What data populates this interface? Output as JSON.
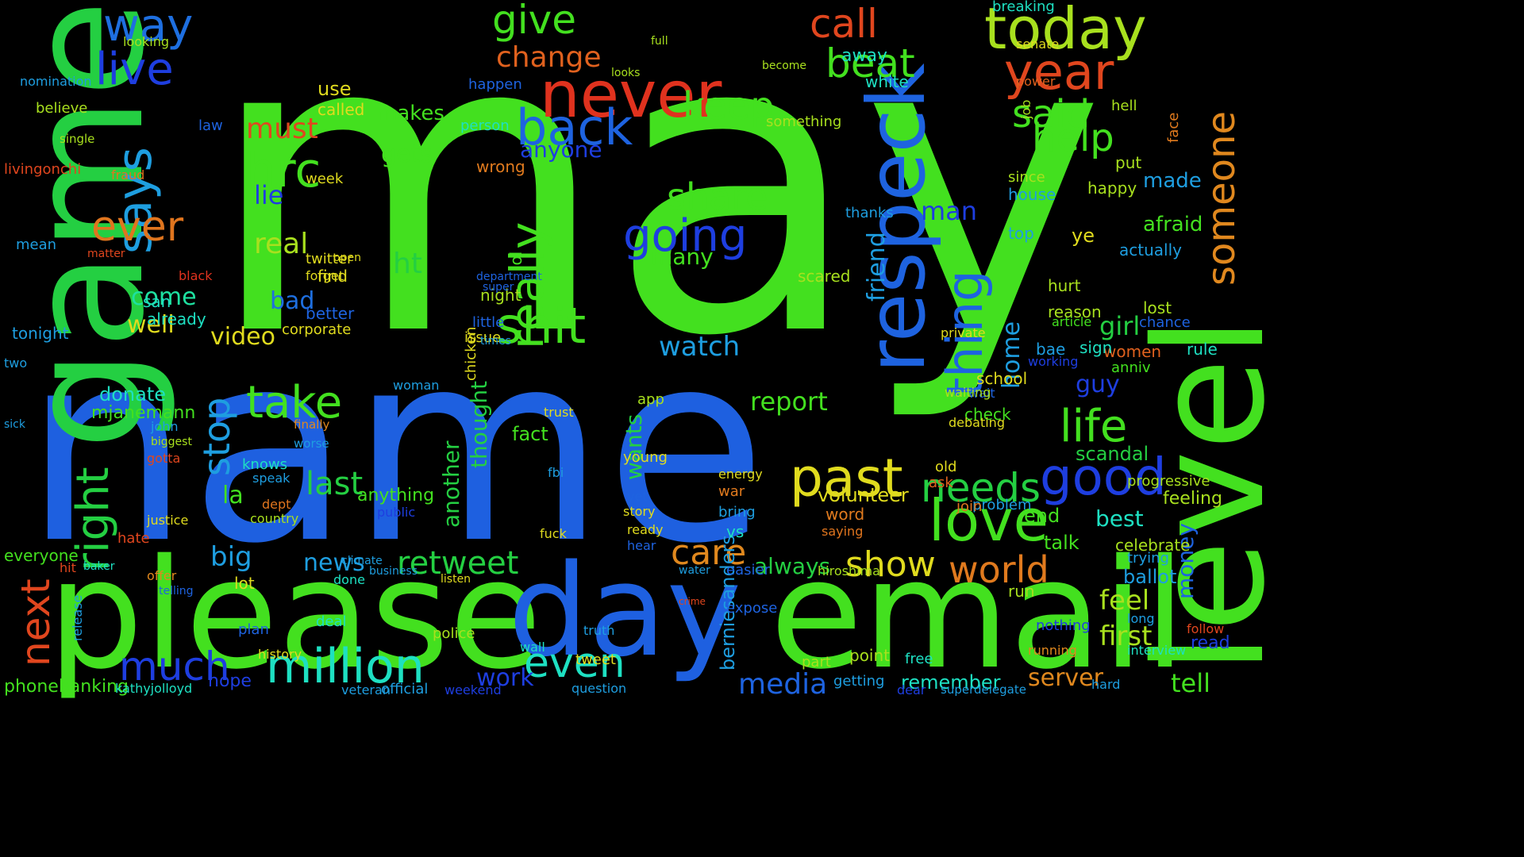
{
  "background_color": "#000000",
  "words": [
    {
      "text": "may",
      "color": "#43e01f"
    },
    {
      "text": "name",
      "color": "#1e60e0"
    },
    {
      "text": "game",
      "color": "#24cf42"
    },
    {
      "text": "level",
      "color": "#43e01f"
    },
    {
      "text": "please",
      "color": "#43e01f"
    },
    {
      "text": "email",
      "color": "#43e01f"
    },
    {
      "text": "day",
      "color": "#1e60e0"
    },
    {
      "text": "respeck",
      "color": "#1e63e0"
    },
    {
      "text": "never",
      "color": "#e0321e"
    },
    {
      "text": "today",
      "color": "#a8e01e"
    },
    {
      "text": "year",
      "color": "#e0461e"
    },
    {
      "text": "back",
      "color": "#1e63e0"
    },
    {
      "text": "says",
      "color": "#1e9ee0"
    },
    {
      "text": "way",
      "color": "#1e6fe0"
    },
    {
      "text": "live",
      "color": "#1e3ee0"
    },
    {
      "text": "give",
      "color": "#43e01f"
    },
    {
      "text": "beat",
      "color": "#43e01f"
    },
    {
      "text": "call",
      "color": "#e0461e"
    },
    {
      "text": "someone",
      "color": "#e0881e"
    },
    {
      "text": "said",
      "color": "#43e01f"
    },
    {
      "text": "help",
      "color": "#43e01f"
    },
    {
      "text": "keep",
      "color": "#43e01f"
    },
    {
      "text": "change",
      "color": "#e0611e"
    },
    {
      "text": "going",
      "color": "#1e3ee0"
    },
    {
      "text": "share",
      "color": "#43e01f"
    },
    {
      "text": "hrc",
      "color": "#43e01f"
    },
    {
      "text": "must",
      "color": "#e0461e"
    },
    {
      "text": "ever",
      "color": "#e0751e"
    },
    {
      "text": "really",
      "color": "#43e01f"
    },
    {
      "text": "shit",
      "color": "#43e01f"
    },
    {
      "text": "thing",
      "color": "#1e63e0"
    },
    {
      "text": "love",
      "color": "#43e01f"
    },
    {
      "text": "past",
      "color": "#e0db1e"
    },
    {
      "text": "good",
      "color": "#1e3ee0"
    },
    {
      "text": "needs",
      "color": "#24cf42"
    },
    {
      "text": "life",
      "color": "#43e01f"
    },
    {
      "text": "right",
      "color": "#24cf42"
    },
    {
      "text": "take",
      "color": "#43e01f"
    },
    {
      "text": "stop",
      "color": "#1e9ee0"
    },
    {
      "text": "million",
      "color": "#1ee0c2"
    },
    {
      "text": "much",
      "color": "#1e3ee0"
    },
    {
      "text": "even",
      "color": "#1ee0c2"
    },
    {
      "text": "world",
      "color": "#e07a1e"
    },
    {
      "text": "care",
      "color": "#e0881e"
    },
    {
      "text": "show",
      "color": "#e0db1e"
    },
    {
      "text": "next",
      "color": "#e0461e"
    },
    {
      "text": "retweet",
      "color": "#24cf42"
    },
    {
      "text": "last",
      "color": "#24cf42"
    },
    {
      "text": "media",
      "color": "#1e63e0"
    },
    {
      "text": "watch",
      "color": "#1e9ee0"
    },
    {
      "text": "report",
      "color": "#43e01f"
    },
    {
      "text": "girl",
      "color": "#24cf42"
    },
    {
      "text": "first",
      "color": "#a8e01e"
    },
    {
      "text": "feel",
      "color": "#a8e01e"
    },
    {
      "text": "tell",
      "color": "#43e01f"
    },
    {
      "text": "server",
      "color": "#e0881e"
    },
    {
      "text": "work",
      "color": "#1e3ee0"
    },
    {
      "text": "big",
      "color": "#1e9ee0"
    },
    {
      "text": "ht",
      "color": "#24cf42"
    },
    {
      "text": "real",
      "color": "#a8e01e"
    },
    {
      "text": "lie",
      "color": "#1e3ee0"
    },
    {
      "text": "bad",
      "color": "#1e6fe0"
    },
    {
      "text": "come",
      "color": "#1ee0a0"
    },
    {
      "text": "video",
      "color": "#e0db1e"
    },
    {
      "text": "well",
      "color": "#e0db1e"
    },
    {
      "text": "news",
      "color": "#1e9ee0"
    },
    {
      "text": "another",
      "color": "#24cf42"
    },
    {
      "text": "thought",
      "color": "#24cf42"
    },
    {
      "text": "wants",
      "color": "#24cf42"
    },
    {
      "text": "always",
      "color": "#24cf42"
    },
    {
      "text": "man",
      "color": "#1e3ee0"
    },
    {
      "text": "friend",
      "color": "#1e9ee0"
    },
    {
      "text": "home",
      "color": "#1e9ee0"
    },
    {
      "text": "guy",
      "color": "#1e3ee0"
    },
    {
      "text": "scandal",
      "color": "#24cf42"
    },
    {
      "text": "best",
      "color": "#1ee0c2"
    },
    {
      "text": "money",
      "color": "#1e63e0"
    },
    {
      "text": "made",
      "color": "#1e9ee0"
    },
    {
      "text": "afraid",
      "color": "#43e01f"
    },
    {
      "text": "gets",
      "color": "#43e01f"
    },
    {
      "text": "makes",
      "color": "#43e01f"
    },
    {
      "text": "many",
      "color": "#43e01f"
    },
    {
      "text": "anyone",
      "color": "#1e3ee0"
    },
    {
      "text": "fact",
      "color": "#43e01f"
    },
    {
      "text": "la",
      "color": "#43e01f"
    },
    {
      "text": "donate",
      "color": "#1ee0c2"
    },
    {
      "text": "mjanemann",
      "color": "#43e01f"
    },
    {
      "text": "hope",
      "color": "#1e3ee0"
    },
    {
      "text": "phonebanking",
      "color": "#43e01f"
    },
    {
      "text": "berniesanders",
      "color": "#1e9ee0"
    },
    {
      "text": "remember",
      "color": "#1ee0c2"
    },
    {
      "text": "volunteer",
      "color": "#e0db1e"
    },
    {
      "text": "anything",
      "color": "#43e01f"
    },
    {
      "text": "corporate",
      "color": "#e0db1e"
    },
    {
      "text": "tonight",
      "color": "#1e9ee0"
    },
    {
      "text": "nomination",
      "color": "#1e9ee0"
    },
    {
      "text": "livingonchi",
      "color": "#e0461e"
    },
    {
      "text": "believe",
      "color": "#a8e01e"
    },
    {
      "text": "everyone",
      "color": "#43e01f"
    },
    {
      "text": "kathyjolloyd",
      "color": "#1ee0c2"
    },
    {
      "text": "official",
      "color": "#1e9ee0"
    },
    {
      "text": "veteran",
      "color": "#1e9ee0"
    },
    {
      "text": "weekend",
      "color": "#1e3ee0"
    },
    {
      "text": "question",
      "color": "#1e9ee0"
    },
    {
      "text": "getting",
      "color": "#1e9ee0"
    },
    {
      "text": "superdelegate",
      "color": "#1e9ee0"
    },
    {
      "text": "dear",
      "color": "#1e3ee0"
    },
    {
      "text": "hard",
      "color": "#1e9ee0"
    },
    {
      "text": "interview",
      "color": "#1ee0c2"
    },
    {
      "text": "read",
      "color": "#1e3ee0"
    },
    {
      "text": "follow",
      "color": "#e0461e"
    },
    {
      "text": "running",
      "color": "#e0881e"
    },
    {
      "text": "nothing",
      "color": "#1e3ee0"
    },
    {
      "text": "long",
      "color": "#1e9ee0"
    },
    {
      "text": "celebrate",
      "color": "#a8e01e"
    },
    {
      "text": "ballot",
      "color": "#1e9ee0"
    },
    {
      "text": "trying",
      "color": "#1e9ee0"
    },
    {
      "text": "feeling",
      "color": "#a8e01e"
    },
    {
      "text": "progressive",
      "color": "#a8e01e"
    },
    {
      "text": "problem",
      "color": "#1e9ee0"
    },
    {
      "text": "end",
      "color": "#43e01f"
    },
    {
      "text": "talk",
      "color": "#43e01f"
    },
    {
      "text": "run",
      "color": "#a8e01e"
    },
    {
      "text": "school",
      "color": "#e0db1e"
    },
    {
      "text": "check",
      "color": "#43e01f"
    },
    {
      "text": "wait",
      "color": "#1e63e0"
    },
    {
      "text": "women",
      "color": "#e0611e"
    },
    {
      "text": "anniv",
      "color": "#43e01f"
    },
    {
      "text": "rule",
      "color": "#1ee0c2"
    },
    {
      "text": "lost",
      "color": "#a8e01e"
    },
    {
      "text": "chance",
      "color": "#1e63e0"
    },
    {
      "text": "reason",
      "color": "#a8e01e"
    },
    {
      "text": "hurt",
      "color": "#a8e01e"
    },
    {
      "text": "article",
      "color": "#43e01f"
    },
    {
      "text": "sign",
      "color": "#1ee0c2"
    },
    {
      "text": "bae",
      "color": "#1e9ee0"
    },
    {
      "text": "working",
      "color": "#1e3ee0"
    },
    {
      "text": "happy",
      "color": "#a8e01e"
    },
    {
      "text": "house",
      "color": "#1e9ee0"
    },
    {
      "text": "actually",
      "color": "#1e9ee0"
    },
    {
      "text": "ye",
      "color": "#e0db1e"
    },
    {
      "text": "top",
      "color": "#1e9ee0"
    },
    {
      "text": "since",
      "color": "#a8e01e"
    },
    {
      "text": "put",
      "color": "#a8e01e"
    },
    {
      "text": "hell",
      "color": "#a8e01e"
    },
    {
      "text": "job",
      "color": "#a8e01e"
    },
    {
      "text": "face",
      "color": "#e07a1e"
    },
    {
      "text": "power",
      "color": "#e0611e"
    },
    {
      "text": "senate",
      "color": "#e0db1e"
    },
    {
      "text": "breaking",
      "color": "#1ee0c2"
    },
    {
      "text": "white",
      "color": "#1ee0c2"
    },
    {
      "text": "away",
      "color": "#1ee0c2"
    },
    {
      "text": "something",
      "color": "#a8e01e"
    },
    {
      "text": "thanks",
      "color": "#1e9ee0"
    },
    {
      "text": "scared",
      "color": "#a8e01e"
    },
    {
      "text": "become",
      "color": "#a8e01e"
    },
    {
      "text": "looks",
      "color": "#a8e01e"
    },
    {
      "text": "full",
      "color": "#a8e01e"
    },
    {
      "text": "happen",
      "color": "#1e63e0"
    },
    {
      "text": "person",
      "color": "#1ee0c2"
    },
    {
      "text": "wrong",
      "color": "#e07a1e"
    },
    {
      "text": "lol",
      "color": "#43e01f"
    },
    {
      "text": "night",
      "color": "#a8e01e"
    },
    {
      "text": "little",
      "color": "#1e63e0"
    },
    {
      "text": "issue",
      "color": "#e0db1e"
    },
    {
      "text": "better",
      "color": "#1e63e0"
    },
    {
      "text": "find",
      "color": "#e0db1e"
    },
    {
      "text": "already",
      "color": "#1ee0c2"
    },
    {
      "text": "san",
      "color": "#1ee0c2"
    },
    {
      "text": "use",
      "color": "#e0db1e"
    },
    {
      "text": "called",
      "color": "#e0db1e"
    },
    {
      "text": "week",
      "color": "#e0db1e"
    },
    {
      "text": "twitter",
      "color": "#e0db1e"
    },
    {
      "text": "forget",
      "color": "#e0db1e"
    },
    {
      "text": "mean",
      "color": "#1e9ee0"
    },
    {
      "text": "looking",
      "color": "#a8e01e"
    },
    {
      "text": "single",
      "color": "#a8e01e"
    },
    {
      "text": "law",
      "color": "#1e63e0"
    },
    {
      "text": "john",
      "color": "#1e9ee0"
    },
    {
      "text": "gotta",
      "color": "#e0461e"
    },
    {
      "text": "biggest",
      "color": "#a8e01e"
    },
    {
      "text": "knows",
      "color": "#1ee0c2"
    },
    {
      "text": "speak",
      "color": "#1e9ee0"
    },
    {
      "text": "dept",
      "color": "#e0751e"
    },
    {
      "text": "country",
      "color": "#a8e01e"
    },
    {
      "text": "hate",
      "color": "#e0461e"
    },
    {
      "text": "lot",
      "color": "#e0db1e"
    },
    {
      "text": "plan",
      "color": "#1e63e0"
    },
    {
      "text": "history",
      "color": "#e0db1e"
    },
    {
      "text": "police",
      "color": "#a8e01e"
    },
    {
      "text": "deal",
      "color": "#1ee0c2"
    },
    {
      "text": "expose",
      "color": "#1e63e0"
    },
    {
      "text": "easier",
      "color": "#1e63e0"
    },
    {
      "text": "hiroshima",
      "color": "#a8e01e"
    },
    {
      "text": "free",
      "color": "#1ee0c2"
    },
    {
      "text": "point",
      "color": "#a8e01e"
    },
    {
      "text": "part",
      "color": "#a8e01e"
    },
    {
      "text": "word",
      "color": "#e07a1e"
    },
    {
      "text": "saying",
      "color": "#e0751e"
    },
    {
      "text": "ask",
      "color": "#e0611e"
    },
    {
      "text": "old",
      "color": "#e0db1e"
    },
    {
      "text": "join",
      "color": "#e0751e"
    },
    {
      "text": "private",
      "color": "#e0db1e"
    },
    {
      "text": "waiting",
      "color": "#a8e01e"
    },
    {
      "text": "debating",
      "color": "#e0db1e"
    },
    {
      "text": "energy",
      "color": "#e0db1e"
    },
    {
      "text": "war",
      "color": "#e07a1e"
    },
    {
      "text": "bring",
      "color": "#1e9ee0"
    },
    {
      "text": "vs",
      "color": "#1ee0c2"
    },
    {
      "text": "app",
      "color": "#a8e01e"
    },
    {
      "text": "young",
      "color": "#e0db1e"
    },
    {
      "text": "story",
      "color": "#e0db1e"
    },
    {
      "text": "yet",
      "color": "#1e63e0"
    },
    {
      "text": "ready",
      "color": "#e0db1e"
    },
    {
      "text": "hear",
      "color": "#1e63e0"
    },
    {
      "text": "fbi",
      "color": "#1e9ee0"
    },
    {
      "text": "fuck",
      "color": "#e0db1e"
    },
    {
      "text": "tweet",
      "color": "#e0db1e"
    },
    {
      "text": "truth",
      "color": "#1e9ee0"
    },
    {
      "text": "wall",
      "color": "#1ee0c2"
    },
    {
      "text": "done",
      "color": "#1ee0c2"
    },
    {
      "text": "listen",
      "color": "#e0db1e"
    },
    {
      "text": "business",
      "color": "#1e9ee0"
    },
    {
      "text": "public",
      "color": "#1e3ee0"
    },
    {
      "text": "woman",
      "color": "#1e9ee0"
    },
    {
      "text": "worse",
      "color": "#1e9ee0"
    },
    {
      "text": "finally",
      "color": "#e0881e"
    },
    {
      "text": "offer",
      "color": "#e0881e"
    },
    {
      "text": "telling",
      "color": "#1e63e0"
    },
    {
      "text": "trust",
      "color": "#e0db1e"
    },
    {
      "text": "chicken",
      "color": "#e0db1e"
    },
    {
      "text": "times",
      "color": "#1e9ee0"
    },
    {
      "text": "super",
      "color": "#1e63e0"
    },
    {
      "text": "department",
      "color": "#1e63e0"
    },
    {
      "text": "climate",
      "color": "#1e9ee0"
    },
    {
      "text": "justice",
      "color": "#e0db1e"
    },
    {
      "text": "two",
      "color": "#1e9ee0"
    },
    {
      "text": "hit",
      "color": "#e0461e"
    },
    {
      "text": "baker",
      "color": "#1ee0c2"
    },
    {
      "text": "release",
      "color": "#1e9ee0"
    },
    {
      "text": "fraud",
      "color": "#e0751e"
    },
    {
      "text": "matter",
      "color": "#e0461e"
    },
    {
      "text": "black",
      "color": "#e0321e"
    },
    {
      "text": "open",
      "color": "#e0db1e"
    },
    {
      "text": "sick",
      "color": "#1e9ee0"
    },
    {
      "text": "water",
      "color": "#1e9ee0"
    },
    {
      "text": "crime",
      "color": "#e0461e"
    }
  ]
}
